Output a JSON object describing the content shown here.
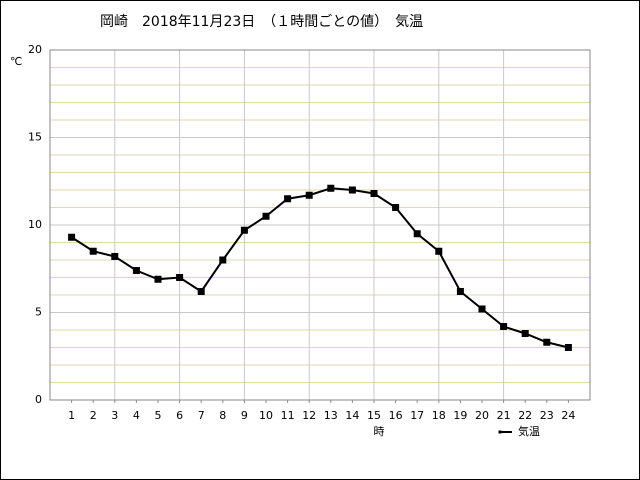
{
  "chart_data": {
    "type": "line",
    "title": "岡崎　2018年11月23日　（１時間ごとの値）　気温",
    "y_unit": "℃",
    "x_label": "時",
    "x": [
      1,
      2,
      3,
      4,
      5,
      6,
      7,
      8,
      9,
      10,
      11,
      12,
      13,
      14,
      15,
      16,
      17,
      18,
      19,
      20,
      21,
      22,
      23,
      24
    ],
    "series": [
      {
        "name": "気温",
        "color": "#000000",
        "values": [
          9.3,
          8.5,
          8.2,
          7.4,
          6.9,
          7.0,
          6.2,
          8.0,
          9.7,
          10.5,
          11.5,
          11.7,
          12.1,
          12.0,
          11.8,
          11.0,
          9.5,
          8.5,
          6.2,
          5.2,
          4.2,
          3.8,
          3.3,
          3.0
        ]
      }
    ],
    "xlim": [
      0,
      25
    ],
    "xticks": [
      1,
      2,
      3,
      4,
      5,
      6,
      7,
      8,
      9,
      10,
      11,
      12,
      13,
      14,
      15,
      16,
      17,
      18,
      19,
      20,
      21,
      22,
      23,
      24
    ],
    "x_grid": [
      3,
      6,
      9,
      12,
      15,
      18,
      21
    ],
    "ylim": [
      0,
      20
    ],
    "yticks": [
      0,
      5,
      10,
      15,
      20
    ],
    "y_minor_step": 1,
    "grid": true,
    "legend": "bottom-right"
  }
}
